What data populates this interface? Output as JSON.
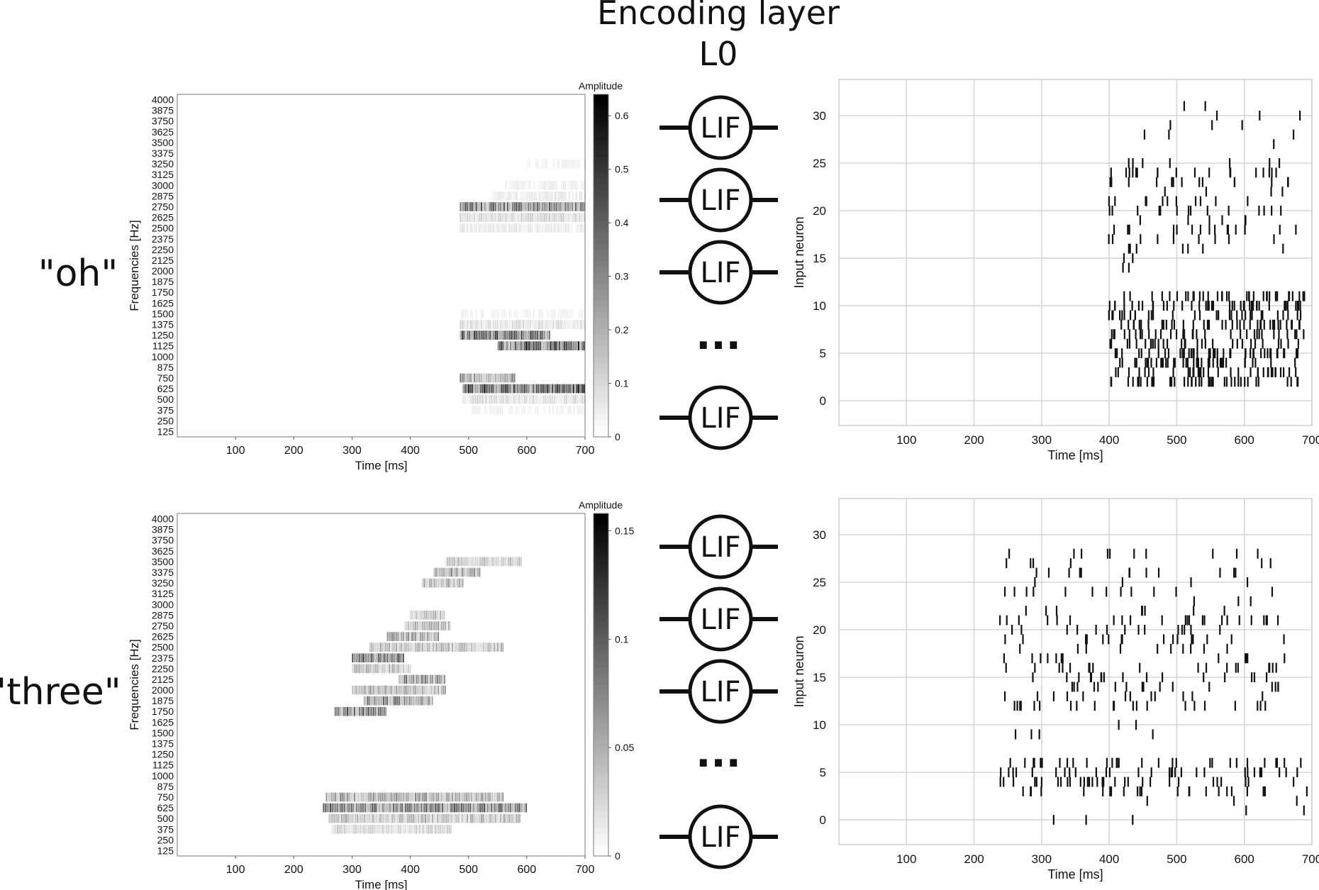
{
  "header": {
    "title_line1": "Encoding layer",
    "title_line2": "L0"
  },
  "neuron_label": "LIF",
  "ellipsis": "...",
  "chart_data": [
    {
      "type": "heatmap",
      "word": "\"oh\"",
      "xlabel": "Time [ms]",
      "ylabel": "Frequencies [Hz]",
      "xlim": [
        0,
        700
      ],
      "xticks": [
        100,
        200,
        300,
        400,
        500,
        600,
        700
      ],
      "yticks": [
        125,
        250,
        375,
        500,
        625,
        750,
        875,
        1000,
        1125,
        1250,
        1375,
        1500,
        1625,
        1750,
        1875,
        2000,
        2125,
        2250,
        2375,
        2500,
        2625,
        2750,
        2875,
        3000,
        3125,
        3250,
        3375,
        3500,
        3625,
        3750,
        3875,
        4000
      ],
      "colorbar": {
        "label": "Amplitude",
        "min": 0,
        "max": 0.64,
        "ticks": [
          "0",
          "0.1",
          "0.2",
          "0.3",
          "0.4",
          "0.5",
          "0.6"
        ],
        "tick_values": [
          0,
          0.1,
          0.2,
          0.3,
          0.4,
          0.5,
          0.6
        ]
      },
      "bands": [
        {
          "freq": 2750,
          "t0": 485,
          "t1": 700,
          "level": 0.4
        },
        {
          "freq": 2625,
          "t0": 485,
          "t1": 700,
          "level": 0.12
        },
        {
          "freq": 2500,
          "t0": 485,
          "t1": 700,
          "level": 0.07
        },
        {
          "freq": 2875,
          "t0": 540,
          "t1": 700,
          "level": 0.06
        },
        {
          "freq": 3000,
          "t0": 560,
          "t1": 700,
          "level": 0.05
        },
        {
          "freq": 3250,
          "t0": 600,
          "t1": 700,
          "level": 0.04
        },
        {
          "freq": 1375,
          "t0": 485,
          "t1": 700,
          "level": 0.1
        },
        {
          "freq": 1250,
          "t0": 485,
          "t1": 640,
          "level": 0.45
        },
        {
          "freq": 1125,
          "t0": 550,
          "t1": 700,
          "level": 0.5
        },
        {
          "freq": 1500,
          "t0": 485,
          "t1": 700,
          "level": 0.04
        },
        {
          "freq": 750,
          "t0": 485,
          "t1": 580,
          "level": 0.3
        },
        {
          "freq": 625,
          "t0": 490,
          "t1": 700,
          "level": 0.55
        },
        {
          "freq": 500,
          "t0": 490,
          "t1": 700,
          "level": 0.1
        },
        {
          "freq": 375,
          "t0": 500,
          "t1": 700,
          "level": 0.04
        }
      ]
    },
    {
      "type": "scatter",
      "word": "\"oh\"",
      "xlabel": "Time [ms]",
      "ylabel": "Input neuron",
      "xlim": [
        0,
        700
      ],
      "ylim": [
        -2.6,
        33.8
      ],
      "xticks": [
        100,
        200,
        300,
        400,
        500,
        600,
        700
      ],
      "yticks": [
        0,
        5,
        10,
        15,
        20,
        25,
        30
      ],
      "grid": true,
      "clusters": [
        {
          "neurons": [
            2,
            3,
            4,
            5,
            6
          ],
          "t0": 400,
          "t1": 680,
          "events": 190
        },
        {
          "neurons": [
            7,
            8,
            9,
            10,
            11
          ],
          "t0": 398,
          "t1": 690,
          "events": 180
        },
        {
          "neurons": [
            12,
            13,
            14,
            15
          ],
          "t0": 405,
          "t1": 440,
          "events": 4
        },
        {
          "neurons": [
            16,
            17,
            18,
            19,
            20,
            21,
            22,
            23,
            24,
            25
          ],
          "t0": 398,
          "t1": 680,
          "events": 105
        },
        {
          "neurons": [
            26,
            27,
            28,
            29,
            30,
            31
          ],
          "t0": 420,
          "t1": 690,
          "events": 12
        }
      ]
    },
    {
      "type": "heatmap",
      "word": "\"three\"",
      "xlabel": "Time [ms]",
      "ylabel": "Frequencies [Hz]",
      "xlim": [
        0,
        700
      ],
      "xticks": [
        100,
        200,
        300,
        400,
        500,
        600,
        700
      ],
      "yticks": [
        125,
        250,
        375,
        500,
        625,
        750,
        875,
        1000,
        1125,
        1250,
        1375,
        1500,
        1625,
        1750,
        1875,
        2000,
        2125,
        2250,
        2375,
        2500,
        2625,
        2750,
        2875,
        3000,
        3125,
        3250,
        3375,
        3500,
        3625,
        3750,
        3875,
        4000
      ],
      "colorbar": {
        "label": "Amplitude",
        "min": 0,
        "max": 0.158,
        "ticks": [
          "0",
          "0.05",
          "0.1",
          "0.15"
        ],
        "tick_values": [
          0,
          0.05,
          0.1,
          0.15
        ]
      },
      "bands": [
        {
          "freq": 625,
          "t0": 250,
          "t1": 600,
          "level": 0.1
        },
        {
          "freq": 750,
          "t0": 255,
          "t1": 560,
          "level": 0.07
        },
        {
          "freq": 500,
          "t0": 260,
          "t1": 590,
          "level": 0.05
        },
        {
          "freq": 375,
          "t0": 265,
          "t1": 470,
          "level": 0.03
        },
        {
          "freq": 1750,
          "t0": 270,
          "t1": 360,
          "level": 0.1
        },
        {
          "freq": 1875,
          "t0": 320,
          "t1": 440,
          "level": 0.09
        },
        {
          "freq": 2000,
          "t0": 300,
          "t1": 460,
          "level": 0.06
        },
        {
          "freq": 2125,
          "t0": 380,
          "t1": 460,
          "level": 0.08
        },
        {
          "freq": 2250,
          "t0": 300,
          "t1": 400,
          "level": 0.05
        },
        {
          "freq": 2375,
          "t0": 300,
          "t1": 390,
          "level": 0.11
        },
        {
          "freq": 2500,
          "t0": 330,
          "t1": 560,
          "level": 0.05
        },
        {
          "freq": 2625,
          "t0": 360,
          "t1": 450,
          "level": 0.07
        },
        {
          "freq": 2750,
          "t0": 390,
          "t1": 470,
          "level": 0.05
        },
        {
          "freq": 2875,
          "t0": 400,
          "t1": 460,
          "level": 0.05
        },
        {
          "freq": 3250,
          "t0": 420,
          "t1": 490,
          "level": 0.06
        },
        {
          "freq": 3375,
          "t0": 440,
          "t1": 520,
          "level": 0.07
        },
        {
          "freq": 3500,
          "t0": 460,
          "t1": 590,
          "level": 0.04
        }
      ]
    },
    {
      "type": "scatter",
      "word": "\"three\"",
      "xlabel": "Time [ms]",
      "ylabel": "Input neuron",
      "xlim": [
        0,
        700
      ],
      "ylim": [
        -2.6,
        33.8
      ],
      "xticks": [
        100,
        200,
        300,
        400,
        500,
        600,
        700
      ],
      "yticks": [
        0,
        5,
        10,
        15,
        20,
        25,
        30
      ],
      "grid": true,
      "clusters": [
        {
          "neurons": [
            0,
            1,
            2
          ],
          "t0": 250,
          "t1": 690,
          "events": 8
        },
        {
          "neurons": [
            3,
            4,
            5,
            6
          ],
          "t0": 238,
          "t1": 695,
          "events": 115
        },
        {
          "neurons": [
            9,
            10,
            11
          ],
          "t0": 255,
          "t1": 470,
          "events": 6
        },
        {
          "neurons": [
            12,
            13,
            14,
            15,
            16,
            17,
            18,
            19,
            20,
            21
          ],
          "t0": 238,
          "t1": 660,
          "events": 160
        },
        {
          "neurons": [
            22,
            23,
            24,
            25,
            26,
            27,
            28
          ],
          "t0": 245,
          "t1": 650,
          "events": 55
        }
      ]
    }
  ]
}
